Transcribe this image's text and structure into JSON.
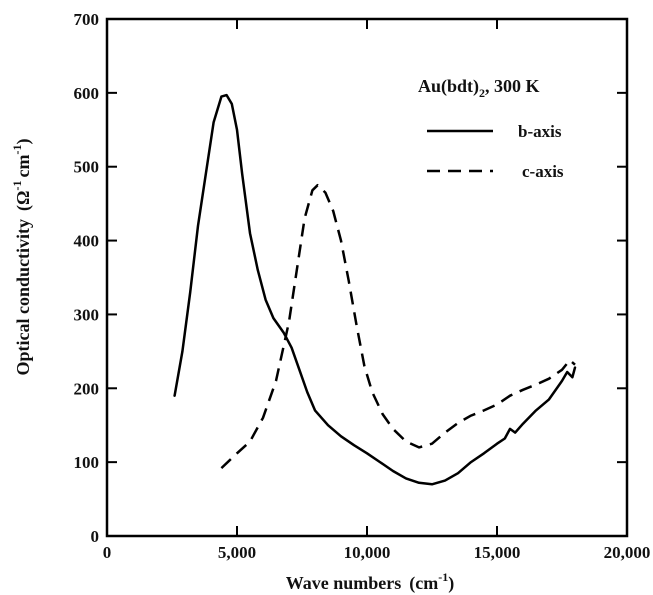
{
  "chart_data": {
    "type": "line",
    "xlabel": {
      "text": "Wave numbers",
      "unit_base": "(cm",
      "unit_sup": "-1",
      "unit_close": ")"
    },
    "ylabel": {
      "text": "Optical conductivity",
      "unit_base": "(Ω",
      "unit_sup1": "-1",
      "unit_mid": "cm",
      "unit_sup2": "-1",
      "unit_close": ")"
    },
    "annotation": {
      "base": "Au(bdt)",
      "sub": "2",
      "rest": ", 300 K"
    },
    "xlim": [
      0,
      20000
    ],
    "ylim": [
      0,
      700
    ],
    "x_ticks": [
      0,
      5000,
      10000,
      15000,
      20000
    ],
    "x_tick_labels": [
      "0",
      "5,000",
      "10,000",
      "15,000",
      "20,000"
    ],
    "y_ticks": [
      0,
      100,
      200,
      300,
      400,
      500,
      600,
      700
    ],
    "y_tick_labels": [
      "0",
      "100",
      "200",
      "300",
      "400",
      "500",
      "600",
      "700"
    ],
    "legend_position": "top-right",
    "grid": false,
    "series": [
      {
        "name": "b-axis",
        "style": "solid",
        "color": "#000000",
        "points": [
          [
            2600,
            190
          ],
          [
            2900,
            250
          ],
          [
            3200,
            330
          ],
          [
            3500,
            420
          ],
          [
            3800,
            490
          ],
          [
            4100,
            560
          ],
          [
            4400,
            595
          ],
          [
            4600,
            597
          ],
          [
            4800,
            585
          ],
          [
            5000,
            550
          ],
          [
            5200,
            490
          ],
          [
            5500,
            410
          ],
          [
            5800,
            360
          ],
          [
            6100,
            320
          ],
          [
            6400,
            295
          ],
          [
            6800,
            275
          ],
          [
            7100,
            255
          ],
          [
            7400,
            225
          ],
          [
            7700,
            195
          ],
          [
            8000,
            170
          ],
          [
            8500,
            150
          ],
          [
            9000,
            135
          ],
          [
            9500,
            123
          ],
          [
            10000,
            112
          ],
          [
            10500,
            100
          ],
          [
            11000,
            88
          ],
          [
            11500,
            78
          ],
          [
            12000,
            72
          ],
          [
            12500,
            70
          ],
          [
            13000,
            75
          ],
          [
            13500,
            85
          ],
          [
            14000,
            100
          ],
          [
            14500,
            112
          ],
          [
            15000,
            125
          ],
          [
            15300,
            132
          ],
          [
            15500,
            145
          ],
          [
            15700,
            140
          ],
          [
            16000,
            152
          ],
          [
            16500,
            170
          ],
          [
            17000,
            185
          ],
          [
            17500,
            210
          ],
          [
            17700,
            222
          ],
          [
            17900,
            215
          ],
          [
            18000,
            228
          ]
        ]
      },
      {
        "name": "c-axis",
        "style": "dashed",
        "color": "#000000",
        "points": [
          [
            4400,
            92
          ],
          [
            4700,
            102
          ],
          [
            5000,
            112
          ],
          [
            5500,
            128
          ],
          [
            6000,
            160
          ],
          [
            6500,
            210
          ],
          [
            7000,
            290
          ],
          [
            7300,
            360
          ],
          [
            7600,
            430
          ],
          [
            7900,
            468
          ],
          [
            8100,
            475
          ],
          [
            8400,
            465
          ],
          [
            8700,
            440
          ],
          [
            9000,
            400
          ],
          [
            9300,
            345
          ],
          [
            9600,
            285
          ],
          [
            9900,
            230
          ],
          [
            10200,
            195
          ],
          [
            10600,
            165
          ],
          [
            11000,
            145
          ],
          [
            11500,
            128
          ],
          [
            12000,
            120
          ],
          [
            12500,
            125
          ],
          [
            13000,
            140
          ],
          [
            13500,
            153
          ],
          [
            14000,
            163
          ],
          [
            14500,
            170
          ],
          [
            15000,
            178
          ],
          [
            15500,
            190
          ],
          [
            16000,
            198
          ],
          [
            16500,
            205
          ],
          [
            17000,
            213
          ],
          [
            17500,
            225
          ],
          [
            17800,
            238
          ],
          [
            18000,
            232
          ]
        ]
      }
    ]
  }
}
